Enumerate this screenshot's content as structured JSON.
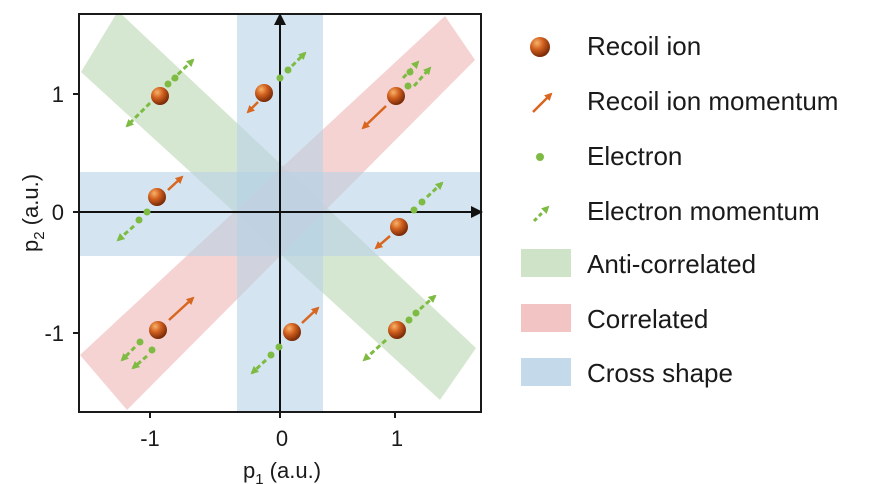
{
  "axes": {
    "x_label_main": "p",
    "x_label_sub": "1",
    "x_label_unit": " (a.u.)",
    "y_label_main": "p",
    "y_label_sub": "2",
    "y_label_unit": " (a.u.)",
    "x_ticks": [
      "-1",
      "0",
      "1"
    ],
    "y_ticks": [
      "1",
      "0",
      "-1"
    ]
  },
  "legend": {
    "items": [
      {
        "label": "Recoil ion",
        "symbol": "recoil-ion"
      },
      {
        "label": "Recoil ion momentum",
        "symbol": "recoil-ion-momentum"
      },
      {
        "label": "Electron",
        "symbol": "electron"
      },
      {
        "label": "Electron momentum",
        "symbol": "electron-momentum"
      },
      {
        "label": "Anti-correlated",
        "symbol": "anti-correlated-band"
      },
      {
        "label": "Correlated",
        "symbol": "correlated-band"
      },
      {
        "label": "Cross shape",
        "symbol": "cross-shape-band"
      }
    ]
  },
  "colors": {
    "anti_correlated": "#cfe3c9",
    "correlated": "#f2c4c4",
    "cross_shape": "#c4d9ea",
    "recoil_ion": "#c8561a",
    "recoil_momentum": "#d9661f",
    "electron": "#7dbb42",
    "electron_momentum": "#7dbb42"
  }
}
